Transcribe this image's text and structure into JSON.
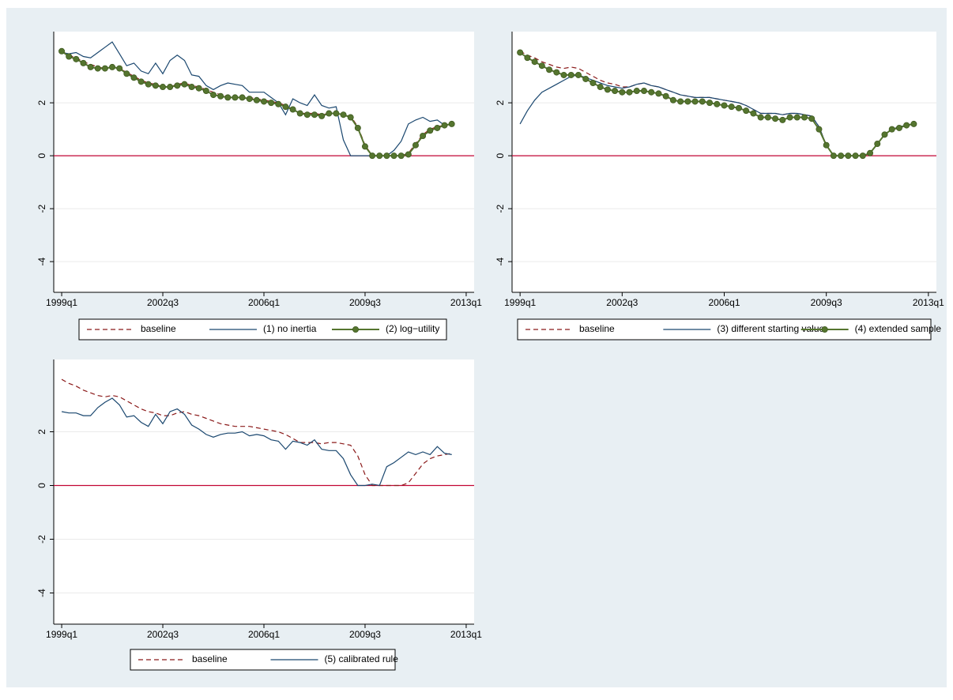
{
  "chart_data": [
    {
      "type": "line",
      "x": [
        156,
        157,
        158,
        159,
        160,
        161,
        162,
        163,
        164,
        165,
        166,
        167,
        168,
        169,
        170,
        171,
        172,
        173,
        174,
        175,
        176,
        177,
        178,
        179,
        180,
        181,
        182,
        183,
        184,
        185,
        186,
        187,
        188,
        189,
        190,
        191,
        192,
        193,
        194,
        195,
        196,
        197,
        198,
        199,
        200,
        201,
        202,
        203,
        204,
        205,
        206,
        207,
        208,
        209,
        210
      ],
      "xlim": [
        154.9,
        213.1
      ],
      "xticks": [
        {
          "value": 156,
          "label": "1999q1"
        },
        {
          "value": 170,
          "label": "2002q3"
        },
        {
          "value": 184,
          "label": "2006q1"
        },
        {
          "value": 198,
          "label": "2009q3"
        },
        {
          "value": 212,
          "label": "2013q1"
        }
      ],
      "ylim": [
        -5.16,
        4.69
      ],
      "yticks": [
        -4,
        -2,
        0,
        2
      ],
      "grid": true,
      "refline": 0,
      "refline_color": "#c10534",
      "series": [
        {
          "name": "baseline",
          "color": "#8b1a1a",
          "dash": true,
          "markers": false,
          "values": [
            3.95,
            3.8,
            3.7,
            3.55,
            3.45,
            3.35,
            3.3,
            3.35,
            3.3,
            3.15,
            3.0,
            2.85,
            2.75,
            2.7,
            2.6,
            2.6,
            2.7,
            2.75,
            2.65,
            2.6,
            2.5,
            2.4,
            2.3,
            2.25,
            2.2,
            2.2,
            2.2,
            2.15,
            2.1,
            2.05,
            2.0,
            1.9,
            1.75,
            1.6,
            1.6,
            1.6,
            1.55,
            1.6,
            1.6,
            1.55,
            1.5,
            1.1,
            0.4,
            0,
            0,
            0,
            0,
            0,
            0.1,
            0.45,
            0.8,
            1.0,
            1.1,
            1.15,
            1.2
          ]
        },
        {
          "name": "(1) no inertia",
          "color": "#1a476f",
          "dash": false,
          "markers": false,
          "values": [
            3.9,
            3.85,
            3.9,
            3.75,
            3.7,
            3.9,
            4.1,
            4.3,
            3.85,
            3.4,
            3.5,
            3.2,
            3.1,
            3.5,
            3.1,
            3.6,
            3.8,
            3.6,
            3.05,
            3.0,
            2.65,
            2.5,
            2.65,
            2.75,
            2.7,
            2.65,
            2.4,
            2.4,
            2.4,
            2.2,
            2.0,
            1.55,
            2.15,
            2.0,
            1.9,
            2.3,
            1.9,
            1.8,
            1.85,
            0.6,
            0,
            0,
            0,
            0,
            0,
            0,
            0.2,
            0.55,
            1.2,
            1.35,
            1.45,
            1.3,
            1.35,
            1.15,
            1.2
          ]
        },
        {
          "name": "(2) log−utility",
          "color": "#55752f",
          "dash": false,
          "markers": true,
          "values": [
            3.95,
            3.75,
            3.65,
            3.5,
            3.35,
            3.3,
            3.3,
            3.35,
            3.3,
            3.1,
            2.95,
            2.8,
            2.7,
            2.65,
            2.6,
            2.6,
            2.65,
            2.7,
            2.6,
            2.55,
            2.45,
            2.3,
            2.25,
            2.2,
            2.2,
            2.2,
            2.15,
            2.1,
            2.05,
            2.0,
            1.95,
            1.85,
            1.75,
            1.6,
            1.55,
            1.55,
            1.5,
            1.6,
            1.6,
            1.55,
            1.45,
            1.05,
            0.35,
            0,
            0,
            0,
            0,
            0,
            0.05,
            0.4,
            0.75,
            0.95,
            1.05,
            1.15,
            1.2
          ]
        }
      ]
    },
    {
      "type": "line",
      "x": [
        156,
        157,
        158,
        159,
        160,
        161,
        162,
        163,
        164,
        165,
        166,
        167,
        168,
        169,
        170,
        171,
        172,
        173,
        174,
        175,
        176,
        177,
        178,
        179,
        180,
        181,
        182,
        183,
        184,
        185,
        186,
        187,
        188,
        189,
        190,
        191,
        192,
        193,
        194,
        195,
        196,
        197,
        198,
        199,
        200,
        201,
        202,
        203,
        204,
        205,
        206,
        207,
        208,
        209,
        210
      ],
      "xlim": [
        154.9,
        213.1
      ],
      "xticks": [
        {
          "value": 156,
          "label": "1999q1"
        },
        {
          "value": 170,
          "label": "2002q3"
        },
        {
          "value": 184,
          "label": "2006q1"
        },
        {
          "value": 198,
          "label": "2009q3"
        },
        {
          "value": 212,
          "label": "2013q1"
        }
      ],
      "ylim": [
        -5.16,
        4.69
      ],
      "yticks": [
        -4,
        -2,
        0,
        2
      ],
      "grid": true,
      "refline": 0,
      "refline_color": "#c10534",
      "series": [
        {
          "name": "baseline",
          "color": "#8b1a1a",
          "dash": true,
          "markers": false,
          "values": [
            3.95,
            3.8,
            3.7,
            3.55,
            3.45,
            3.35,
            3.3,
            3.35,
            3.3,
            3.15,
            3.0,
            2.85,
            2.75,
            2.7,
            2.6,
            2.6,
            2.7,
            2.75,
            2.65,
            2.6,
            2.5,
            2.4,
            2.3,
            2.25,
            2.2,
            2.2,
            2.2,
            2.15,
            2.1,
            2.05,
            2.0,
            1.9,
            1.75,
            1.6,
            1.6,
            1.6,
            1.55,
            1.6,
            1.6,
            1.55,
            1.5,
            1.1,
            0.4,
            0,
            0,
            0,
            0,
            0,
            0.1,
            0.45,
            0.8,
            1.0,
            1.1,
            1.15,
            1.2
          ]
        },
        {
          "name": "(3) different starting value",
          "color": "#1a476f",
          "dash": false,
          "markers": false,
          "values": [
            1.2,
            1.7,
            2.1,
            2.4,
            2.55,
            2.7,
            2.85,
            3.0,
            3.05,
            2.95,
            2.85,
            2.75,
            2.65,
            2.6,
            2.55,
            2.6,
            2.7,
            2.75,
            2.65,
            2.6,
            2.5,
            2.4,
            2.3,
            2.25,
            2.2,
            2.2,
            2.2,
            2.15,
            2.1,
            2.05,
            2.0,
            1.9,
            1.75,
            1.6,
            1.6,
            1.6,
            1.55,
            1.6,
            1.6,
            1.55,
            1.5,
            1.1,
            0.4,
            0,
            0,
            0,
            0,
            0,
            0.1,
            0.45,
            0.8,
            1.0,
            1.1,
            1.15,
            1.2
          ]
        },
        {
          "name": "(4) extended sample",
          "color": "#55752f",
          "dash": false,
          "markers": true,
          "values": [
            3.9,
            3.7,
            3.55,
            3.4,
            3.25,
            3.15,
            3.05,
            3.05,
            3.05,
            2.9,
            2.75,
            2.6,
            2.5,
            2.45,
            2.4,
            2.4,
            2.45,
            2.45,
            2.4,
            2.35,
            2.25,
            2.1,
            2.05,
            2.05,
            2.05,
            2.05,
            2.0,
            1.95,
            1.9,
            1.85,
            1.8,
            1.7,
            1.6,
            1.45,
            1.45,
            1.4,
            1.35,
            1.45,
            1.45,
            1.45,
            1.4,
            1.0,
            0.4,
            0,
            0,
            0,
            0,
            0,
            0.1,
            0.45,
            0.8,
            1.0,
            1.05,
            1.15,
            1.2
          ]
        }
      ]
    },
    {
      "type": "line",
      "x": [
        156,
        157,
        158,
        159,
        160,
        161,
        162,
        163,
        164,
        165,
        166,
        167,
        168,
        169,
        170,
        171,
        172,
        173,
        174,
        175,
        176,
        177,
        178,
        179,
        180,
        181,
        182,
        183,
        184,
        185,
        186,
        187,
        188,
        189,
        190,
        191,
        192,
        193,
        194,
        195,
        196,
        197,
        198,
        199,
        200,
        201,
        202,
        203,
        204,
        205,
        206,
        207,
        208,
        209,
        210
      ],
      "xlim": [
        154.9,
        213.1
      ],
      "xticks": [
        {
          "value": 156,
          "label": "1999q1"
        },
        {
          "value": 170,
          "label": "2002q3"
        },
        {
          "value": 184,
          "label": "2006q1"
        },
        {
          "value": 198,
          "label": "2009q3"
        },
        {
          "value": 212,
          "label": "2013q1"
        }
      ],
      "ylim": [
        -5.16,
        4.69
      ],
      "yticks": [
        -4,
        -2,
        0,
        2
      ],
      "grid": true,
      "refline": 0,
      "refline_color": "#c10534",
      "series": [
        {
          "name": "baseline",
          "color": "#8b1a1a",
          "dash": true,
          "markers": false,
          "values": [
            3.95,
            3.8,
            3.7,
            3.55,
            3.45,
            3.35,
            3.3,
            3.35,
            3.3,
            3.15,
            3.0,
            2.85,
            2.75,
            2.7,
            2.6,
            2.6,
            2.7,
            2.75,
            2.65,
            2.6,
            2.5,
            2.4,
            2.3,
            2.25,
            2.2,
            2.2,
            2.2,
            2.15,
            2.1,
            2.05,
            2.0,
            1.9,
            1.75,
            1.6,
            1.6,
            1.6,
            1.55,
            1.6,
            1.6,
            1.55,
            1.5,
            1.1,
            0.4,
            0,
            0,
            0,
            0,
            0,
            0.1,
            0.45,
            0.8,
            1.0,
            1.1,
            1.15,
            1.2
          ]
        },
        {
          "name": "(5) calibrated rule",
          "color": "#1a476f",
          "dash": false,
          "markers": false,
          "values": [
            2.75,
            2.7,
            2.7,
            2.6,
            2.6,
            2.9,
            3.1,
            3.25,
            3.0,
            2.55,
            2.6,
            2.35,
            2.2,
            2.65,
            2.3,
            2.75,
            2.85,
            2.65,
            2.25,
            2.1,
            1.9,
            1.8,
            1.9,
            1.95,
            1.95,
            2.0,
            1.85,
            1.9,
            1.85,
            1.7,
            1.65,
            1.35,
            1.65,
            1.6,
            1.5,
            1.7,
            1.35,
            1.3,
            1.3,
            1.0,
            0.4,
            0,
            0,
            0.05,
            0,
            0.7,
            0.85,
            1.05,
            1.25,
            1.15,
            1.25,
            1.15,
            1.45,
            1.2,
            1.15
          ]
        }
      ]
    }
  ]
}
